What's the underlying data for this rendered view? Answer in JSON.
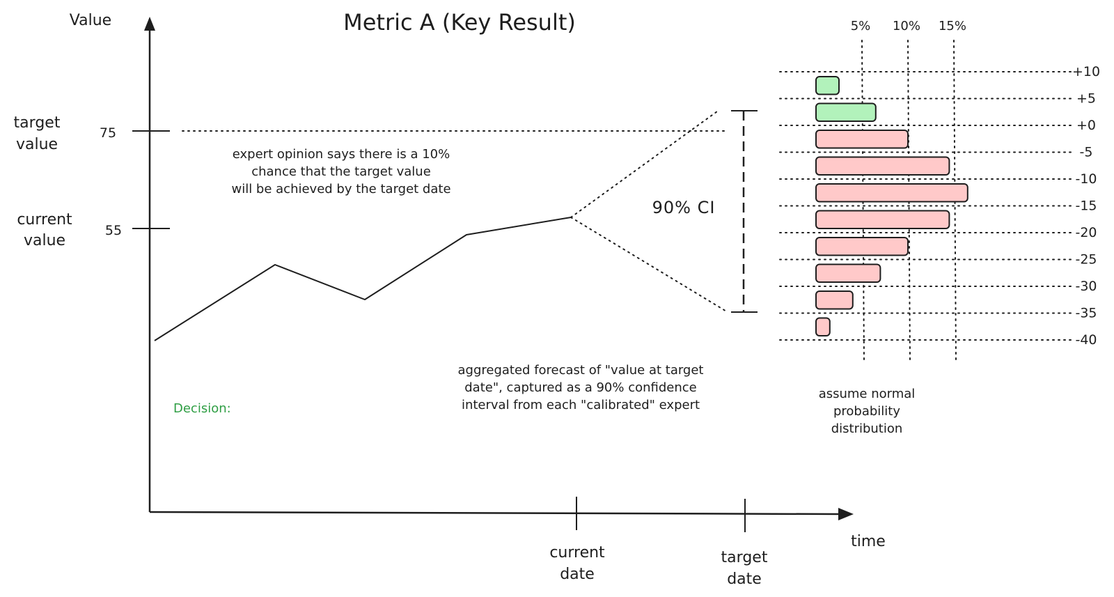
{
  "title": "Metric A (Key Result)",
  "axes": {
    "y_label": "Value",
    "x_label": "time"
  },
  "y_ticks": [
    {
      "value": 75,
      "label": "75",
      "name_lines": [
        "target",
        "value"
      ]
    },
    {
      "value": 55,
      "label": "55",
      "name_lines": [
        "current",
        "value"
      ]
    }
  ],
  "x_ticks": [
    {
      "name_lines": [
        "current",
        "date"
      ]
    },
    {
      "name_lines": [
        "target",
        "date"
      ]
    }
  ],
  "annotations": {
    "expert_note": [
      "expert opinion says there is a 10%",
      "chance that the target value",
      "will be achieved by the target date"
    ],
    "forecast_note": [
      "aggregated forecast of \"value at target",
      "date\", captured as a 90% confidence",
      "interval from each \"calibrated\" expert"
    ],
    "ci_label": "90% CI",
    "decision": "Decision:",
    "distribution_note": [
      "assume normal",
      "probability",
      "distribution"
    ]
  },
  "colors": {
    "ink": "#1e1e1e",
    "positive_fill": "#b2f2bb",
    "negative_fill": "#ffc9c9",
    "decision_text": "#2f9e44"
  },
  "chart_data": {
    "type": "bar",
    "orientation": "horizontal",
    "x_ticks": [
      "5%",
      "10%",
      "15%"
    ],
    "x_values": [
      5,
      10,
      15
    ],
    "categories": [
      "+10",
      "+5",
      "+0",
      "-5",
      "-10",
      "-15",
      "-20",
      "-25",
      "-30",
      "-35",
      "-40"
    ],
    "bars": [
      {
        "bin": "+5..+10",
        "probability": 2.5,
        "sign": "positive"
      },
      {
        "bin": "+0..+5",
        "probability": 6.5,
        "sign": "positive"
      },
      {
        "bin": "-5..+0",
        "probability": 10,
        "sign": "negative"
      },
      {
        "bin": "-10..-5",
        "probability": 14.5,
        "sign": "negative"
      },
      {
        "bin": "-15..-10",
        "probability": 16.5,
        "sign": "negative"
      },
      {
        "bin": "-20..-15",
        "probability": 14.5,
        "sign": "negative"
      },
      {
        "bin": "-25..-20",
        "probability": 10,
        "sign": "negative"
      },
      {
        "bin": "-30..-25",
        "probability": 7,
        "sign": "negative"
      },
      {
        "bin": "-35..-30",
        "probability": 4,
        "sign": "negative"
      },
      {
        "bin": "-40..-35",
        "probability": 1.5,
        "sign": "negative"
      }
    ]
  }
}
